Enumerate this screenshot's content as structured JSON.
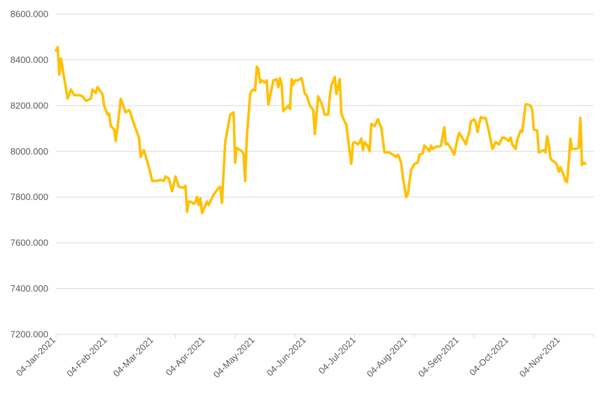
{
  "chart_data": {
    "type": "line",
    "title": "",
    "xlabel": "",
    "ylabel": "",
    "ylim": [
      7200,
      8600
    ],
    "y_ticks": [
      7200,
      7400,
      7600,
      7800,
      8000,
      8200,
      8400,
      8600
    ],
    "y_tick_labels": [
      "7200.000",
      "7400.000",
      "7600.000",
      "7800.000",
      "8000.000",
      "8200.000",
      "8400.000",
      "8600.000"
    ],
    "x_ticks": [
      "2021-01-04",
      "2021-02-04",
      "2021-03-04",
      "2021-04-04",
      "2021-05-04",
      "2021-06-04",
      "2021-07-04",
      "2021-08-04",
      "2021-09-04",
      "2021-10-04",
      "2021-11-04"
    ],
    "x_tick_labels": [
      "04-Jan-2021",
      "04-Feb-2021",
      "04-Mar-2021",
      "04-Apr-2021",
      "04-May-2021",
      "04-Jun-2021",
      "04-Jul-2021",
      "04-Aug-2021",
      "04-Sep-2021",
      "04-Oct-2021",
      "04-Nov-2021"
    ],
    "xlim": [
      "2021-01-04",
      "2021-11-19"
    ],
    "grid": "horizontal",
    "legend": "none",
    "line_color": "#FFC000",
    "series": [
      {
        "x": [
          "2021-01-04",
          "2021-01-05",
          "2021-01-06",
          "2021-01-07",
          "2021-01-08",
          "2021-01-11",
          "2021-01-13",
          "2021-01-15",
          "2021-01-18",
          "2021-01-20",
          "2021-01-22",
          "2021-01-25",
          "2021-01-26",
          "2021-01-28",
          "2021-01-29",
          "2021-02-01",
          "2021-02-02",
          "2021-02-04",
          "2021-02-05",
          "2021-02-06",
          "2021-02-08",
          "2021-02-09",
          "2021-02-11",
          "2021-02-12",
          "2021-02-15",
          "2021-02-17",
          "2021-02-18",
          "2021-02-19",
          "2021-02-22",
          "2021-02-23",
          "2021-02-24",
          "2021-02-26",
          "2021-03-01",
          "2021-03-03",
          "2021-03-05",
          "2021-03-08",
          "2021-03-10",
          "2021-03-11",
          "2021-03-13",
          "2021-03-15",
          "2021-03-17",
          "2021-03-19",
          "2021-03-22",
          "2021-03-23",
          "2021-03-24",
          "2021-03-25",
          "2021-03-26",
          "2021-03-27",
          "2021-03-28",
          "2021-03-29",
          "2021-03-30",
          "2021-03-31",
          "2021-04-01",
          "2021-04-02",
          "2021-04-05",
          "2021-04-06",
          "2021-04-09",
          "2021-04-12",
          "2021-04-13",
          "2021-04-14",
          "2021-04-16",
          "2021-04-19",
          "2021-04-21",
          "2021-04-22",
          "2021-04-23",
          "2021-04-26",
          "2021-04-27",
          "2021-04-28",
          "2021-04-29",
          "2021-05-01",
          "2021-05-02",
          "2021-05-03",
          "2021-05-04",
          "2021-05-05",
          "2021-05-06",
          "2021-05-07",
          "2021-05-08",
          "2021-05-10",
          "2021-05-11",
          "2021-05-12",
          "2021-05-15",
          "2021-05-17",
          "2021-05-18",
          "2021-05-19",
          "2021-05-20",
          "2021-05-21",
          "2021-05-24",
          "2021-05-25",
          "2021-05-26",
          "2021-05-27",
          "2021-05-28",
          "2021-05-30",
          "2021-06-01",
          "2021-06-03",
          "2021-06-04",
          "2021-06-06",
          "2021-06-07",
          "2021-06-08",
          "2021-06-09",
          "2021-06-11",
          "2021-06-13",
          "2021-06-15",
          "2021-06-17",
          "2021-06-18",
          "2021-06-19",
          "2021-06-20",
          "2021-06-21",
          "2021-06-22",
          "2021-06-24",
          "2021-06-25",
          "2021-06-26",
          "2021-06-28",
          "2021-06-30",
          "2021-07-01",
          "2021-07-02",
          "2021-07-03",
          "2021-07-05",
          "2021-07-06",
          "2021-07-07",
          "2021-07-08",
          "2021-07-09",
          "2021-07-10",
          "2021-07-11",
          "2021-07-12",
          "2021-07-13",
          "2021-07-15",
          "2021-07-17",
          "2021-07-18",
          "2021-07-19",
          "2021-07-21",
          "2021-07-22",
          "2021-07-24",
          "2021-07-25",
          "2021-07-28",
          "2021-07-29",
          "2021-07-30",
          "2021-07-31",
          "2021-08-01",
          "2021-08-03",
          "2021-08-04",
          "2021-08-06",
          "2021-08-07",
          "2021-08-08",
          "2021-08-10",
          "2021-08-11",
          "2021-08-13",
          "2021-08-14",
          "2021-08-16",
          "2021-08-17",
          "2021-08-18",
          "2021-08-19",
          "2021-08-20",
          "2021-08-21",
          "2021-08-23",
          "2021-08-24",
          "2021-08-26",
          "2021-08-27",
          "2021-08-28",
          "2021-08-31",
          "2021-09-01",
          "2021-09-03",
          "2021-09-04",
          "2021-09-07",
          "2021-09-08",
          "2021-09-09",
          "2021-09-10",
          "2021-09-11",
          "2021-09-13",
          "2021-09-14",
          "2021-09-15",
          "2021-09-17",
          "2021-09-18",
          "2021-09-20",
          "2021-09-22",
          "2021-09-24",
          "2021-09-26",
          "2021-09-28",
          "2021-09-30",
          "2021-10-01",
          "2021-10-03",
          "2021-10-04",
          "2021-10-05",
          "2021-10-06",
          "2021-10-08",
          "2021-10-09",
          "2021-10-11",
          "2021-10-12",
          "2021-10-14",
          "2021-10-15",
          "2021-10-17",
          "2021-10-18",
          "2021-10-19",
          "2021-10-21",
          "2021-10-22",
          "2021-10-25",
          "2021-10-26",
          "2021-10-27",
          "2021-10-28",
          "2021-10-29",
          "2021-10-30",
          "2021-11-01",
          "2021-11-02",
          "2021-11-03",
          "2021-11-04",
          "2021-11-06",
          "2021-11-07",
          "2021-11-08",
          "2021-11-09",
          "2021-11-10",
          "2021-11-11",
          "2021-11-12",
          "2021-11-13",
          "2021-11-15",
          "2021-11-16",
          "2021-11-17",
          "2021-11-18",
          "2021-11-19"
        ],
        "y": [
          8440,
          8455,
          8335,
          8405,
          8360,
          8230,
          8270,
          8245,
          8245,
          8240,
          8220,
          8230,
          8270,
          8255,
          8280,
          8250,
          8200,
          8160,
          8165,
          8110,
          8095,
          8045,
          8160,
          8230,
          8170,
          8180,
          8165,
          8140,
          8080,
          8060,
          7975,
          8005,
          7930,
          7870,
          7870,
          7875,
          7870,
          7890,
          7880,
          7825,
          7890,
          7845,
          7840,
          7850,
          7735,
          7780,
          7780,
          7775,
          7770,
          7780,
          7800,
          7765,
          7795,
          7730,
          7780,
          7765,
          7810,
          7840,
          7845,
          7775,
          8040,
          8160,
          8170,
          7950,
          8015,
          8000,
          7990,
          7870,
          8060,
          8250,
          8265,
          8270,
          8265,
          8370,
          8360,
          8300,
          8310,
          8300,
          8310,
          8205,
          8310,
          8315,
          8280,
          8320,
          8290,
          8175,
          8200,
          8185,
          8315,
          8290,
          8310,
          8310,
          8320,
          8250,
          8245,
          8200,
          8190,
          8180,
          8075,
          8240,
          8210,
          8160,
          8160,
          8240,
          8290,
          8305,
          8325,
          8250,
          8315,
          8165,
          8145,
          8115,
          7995,
          7945,
          8035,
          8040,
          8030,
          8040,
          8055,
          8005,
          8040,
          8030,
          8020,
          8000,
          8120,
          8110,
          8140,
          8120,
          8105,
          7995,
          7995,
          7995,
          7990,
          7975,
          7985,
          7970,
          7950,
          7890,
          7800,
          7810,
          7920,
          7930,
          7945,
          7950,
          7985,
          7990,
          8025,
          8010,
          8000,
          8025,
          8010,
          8015,
          8020,
          8020,
          8025,
          8105,
          8030,
          8035,
          8000,
          7985,
          8055,
          8080,
          8045,
          8030,
          8060,
          8080,
          8130,
          8140,
          8125,
          8085,
          8150,
          8145,
          8145,
          8085,
          8010,
          8040,
          8030,
          8060,
          8060,
          8050,
          8045,
          8060,
          8030,
          8010,
          8050,
          8090,
          8085,
          8205,
          8205,
          8200,
          8180,
          8095,
          8090,
          7995,
          8005,
          7995,
          8065,
          8030,
          7970,
          7960,
          7950,
          7940,
          7910,
          7930,
          7895,
          7870,
          7865,
          7950,
          8055,
          8010,
          8010,
          8010,
          8015,
          8145,
          7940,
          7950,
          7945
        ]
      }
    ]
  }
}
